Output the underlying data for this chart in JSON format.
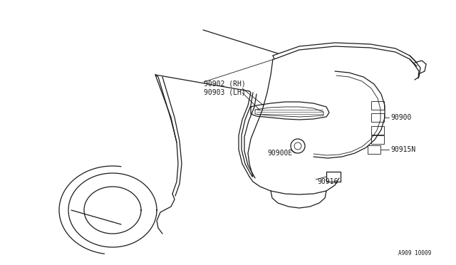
{
  "background_color": "#ffffff",
  "line_color": "#1a1a1a",
  "figure_width": 6.4,
  "figure_height": 3.72,
  "dpi": 100,
  "labels": {
    "part1": "90902 (RH)",
    "part2": "90903 (LH)",
    "part3": "90900E",
    "part4": "90900",
    "part5": "90915N",
    "part6": "90916"
  },
  "watermark": "A909 10009",
  "lw_main": 0.9,
  "lw_thin": 0.6,
  "fontsize_label": 7.0,
  "fontsize_watermark": 5.5
}
